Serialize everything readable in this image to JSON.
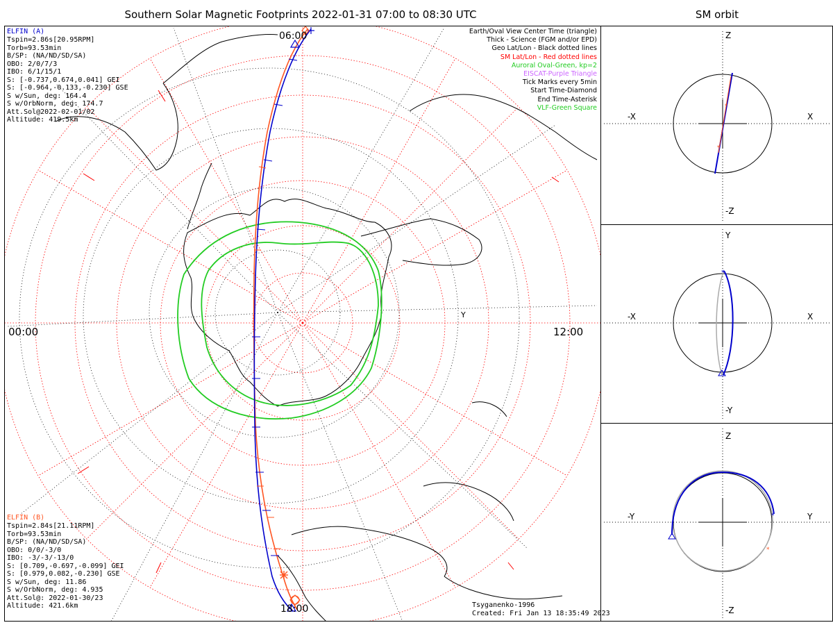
{
  "title": "Southern Solar Magnetic Footprints 2022-01-31 07:00 to 08:30 UTC",
  "right_title": "SM orbit",
  "hour_labels": {
    "top": "06:00",
    "bottom": "18:00",
    "left": "00:00",
    "right": "12:00",
    "y": "Y"
  },
  "legend": [
    {
      "text": "Earth/Oval View Center Time (triangle)",
      "color": "#000000"
    },
    {
      "text": "Thick - Science (FGM and/or EPD)",
      "color": "#000000"
    },
    {
      "text": "Geo Lat/Lon - Black dotted lines",
      "color": "#000000"
    },
    {
      "text": "SM Lat/Lon - Red dotted lines",
      "color": "#ff0000"
    },
    {
      "text": "Auroral Oval-Green, kp=2",
      "color": "#22cc22"
    },
    {
      "text": "EISCAT-Purple Triangle",
      "color": "#cc66ff"
    },
    {
      "text": "Tick Marks every 5min",
      "color": "#000000"
    },
    {
      "text": "Start Time-Diamond",
      "color": "#000000"
    },
    {
      "text": "End Time-Asterisk",
      "color": "#000000"
    },
    {
      "text": "VLF-Green Square",
      "color": "#22cc22"
    }
  ],
  "probe_a": {
    "name": "ELFIN (A)",
    "color": "#0000cc",
    "lines": [
      "Tspin=2.86s[20.95RPM]",
      "Torb=93.53min",
      "B/SP: (NA/ND/SD/SA)",
      "OBO: 2/0/7/3",
      "IBO: 6/1/15/1",
      "S: [-0.737,0.674,0.041] GEI",
      "S: [-0.964,-0.133,-0.230] GSE",
      "S w/Sun, deg: 164.4",
      "S w/OrbNorm, deg: 174.7",
      "Att.Sol@2022-02-01/02",
      "Altitude: 419.5km"
    ]
  },
  "probe_b": {
    "name": "ELFIN (B)",
    "color": "#ff5522",
    "lines": [
      "Tspin=2.84s[21.11RPM]",
      "Torb=93.53min",
      "B/SP: (NA/ND/SD/SA)",
      "OBO: 0/0/-3/0",
      "IBO: -3/-3/-13/0",
      "S: [0.709,-0.697,-0.099] GEI",
      "S: [0.979,0.082,-0.230] GSE",
      "S w/Sun, deg: 11.86",
      "S w/OrbNorm, deg: 4.935",
      "Att.Sol@: 2022-01-30/23",
      "Altitude: 421.6km"
    ]
  },
  "footer": {
    "model": "Tsyganenko-1996",
    "created": "Created: Fri Jan 13 18:35:49 2023"
  },
  "panels": [
    {
      "top": "Z",
      "bottom": "-Z",
      "left": "-X",
      "right": "X"
    },
    {
      "top": "Y",
      "bottom": "-Y",
      "left": "-X",
      "right": "X"
    },
    {
      "top": "Z",
      "bottom": "-Z",
      "left": "-Y",
      "right": "Y"
    }
  ],
  "colors": {
    "probe_a": "#0000cc",
    "probe_b": "#ff5522",
    "oval": "#22cc22",
    "sm_grid": "#ff0000",
    "geo_grid": "#000000"
  }
}
